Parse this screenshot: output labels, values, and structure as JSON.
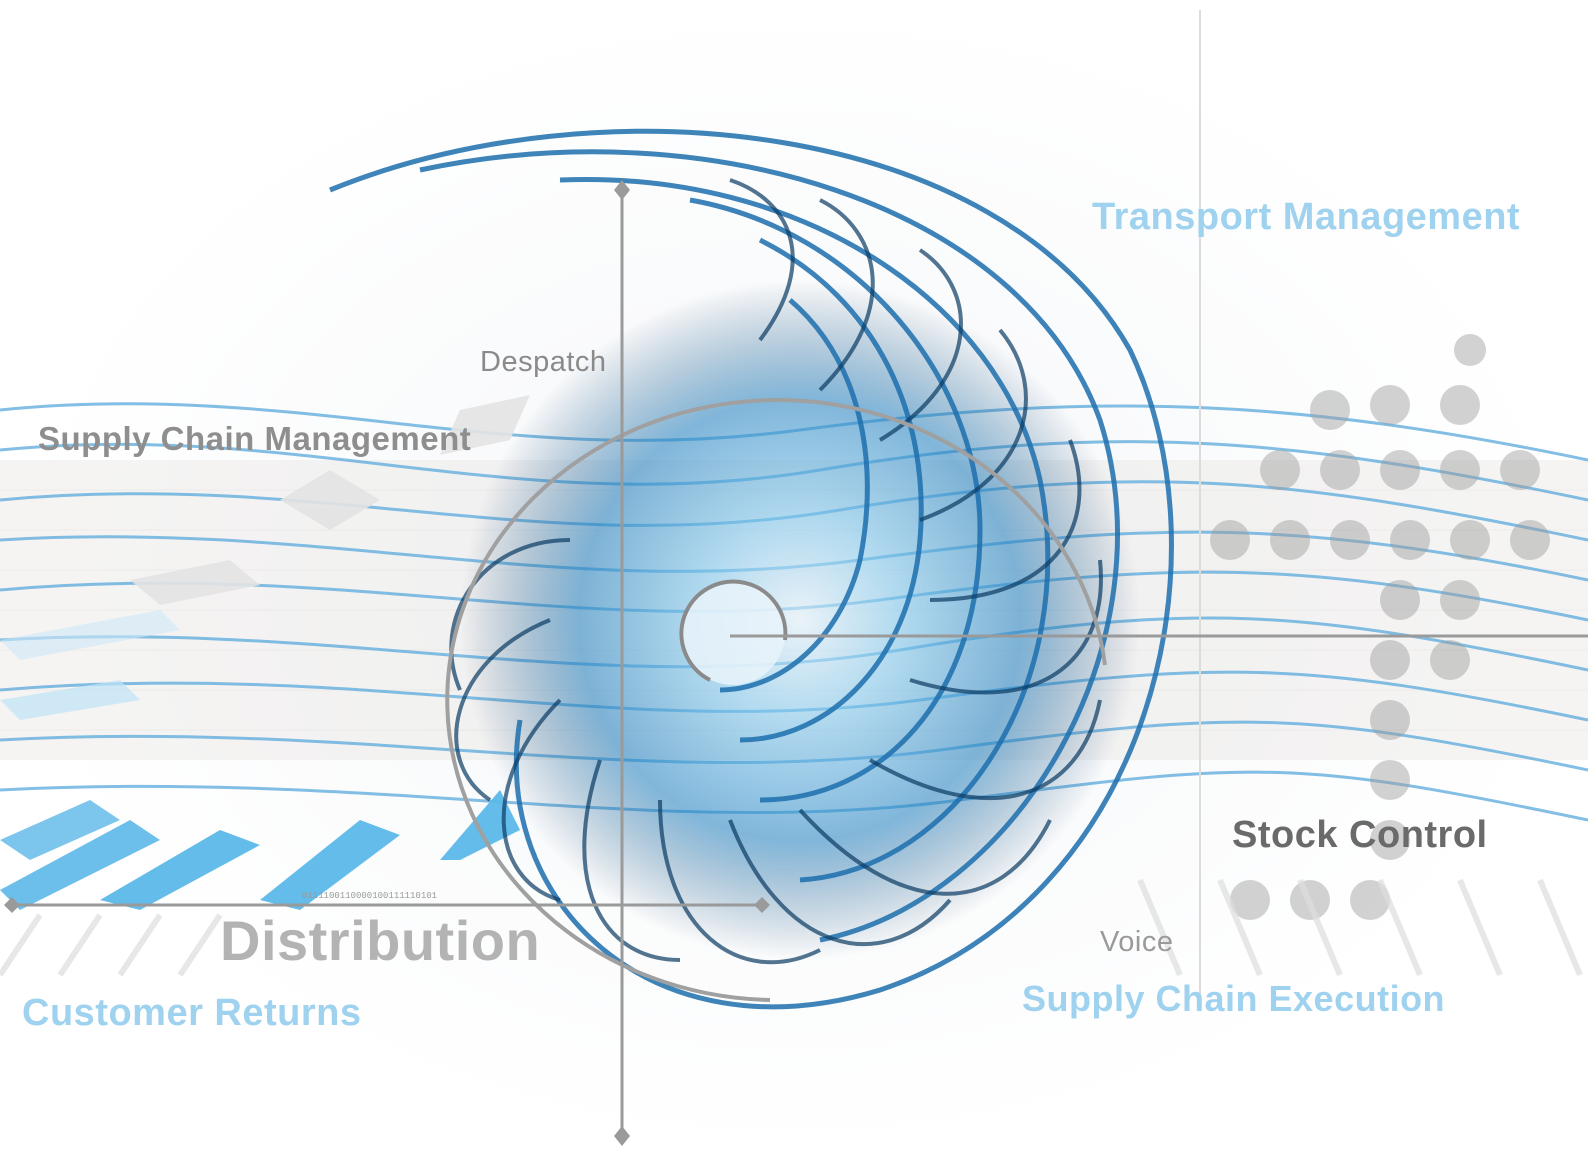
{
  "labels": {
    "transport_management": "Transport Management",
    "despatch": "Despatch",
    "supply_chain_management": "Supply Chain Management",
    "stock_control": "Stock Control",
    "voice": "Voice",
    "distribution": "Distribution",
    "customer_returns": "Customer Returns",
    "supply_chain_execution": "Supply Chain Execution",
    "binary_strip": "0111100110000100111110101"
  },
  "colors": {
    "accent_blue": "#3a9fd6",
    "light_blue": "#9fd2ee",
    "gray_line": "#9a9a9a",
    "text_gray": "#8e8e8e"
  }
}
